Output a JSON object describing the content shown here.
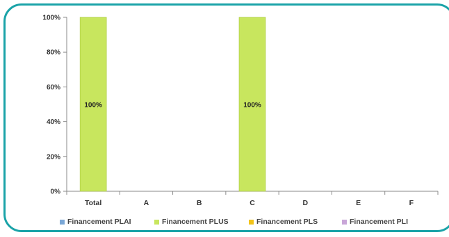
{
  "chart_data": {
    "type": "bar",
    "categories": [
      "Total",
      "A",
      "B",
      "C",
      "D",
      "E",
      "F"
    ],
    "series": [
      {
        "name": "Financement PLAI",
        "color": "#7aa7d6",
        "values": [
          0,
          0,
          0,
          0,
          0,
          0,
          0
        ]
      },
      {
        "name": "Financement PLUS",
        "color": "#c8e65e",
        "values": [
          100,
          0,
          0,
          100,
          0,
          0,
          0
        ]
      },
      {
        "name": "Financement PLS",
        "color": "#f2c318",
        "values": [
          0,
          0,
          0,
          0,
          0,
          0,
          0
        ]
      },
      {
        "name": "Financement PLI",
        "color": "#c9a6d8",
        "values": [
          0,
          0,
          0,
          0,
          0,
          0,
          0
        ]
      }
    ],
    "data_labels": [
      "100%",
      "",
      "",
      "100%",
      "",
      "",
      ""
    ],
    "yticks": [
      "0%",
      "20%",
      "40%",
      "60%",
      "80%",
      "100%"
    ],
    "ylim": [
      0,
      100
    ],
    "stacked": true,
    "grid": false,
    "legend_position": "bottom"
  }
}
